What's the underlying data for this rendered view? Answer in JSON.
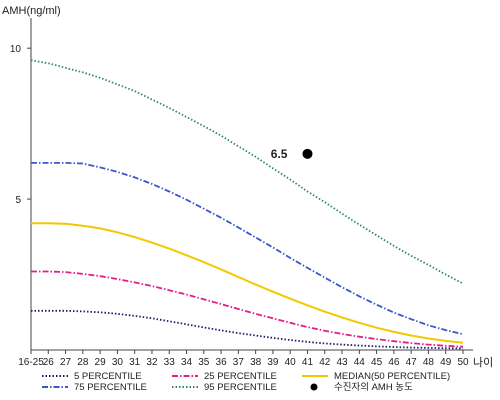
{
  "chart_data": {
    "type": "line",
    "ylabel": "AMH(ng/ml)",
    "xlabel": "나이",
    "x_tick_labels": [
      "16-25",
      "26",
      "27",
      "28",
      "29",
      "30",
      "31",
      "32",
      "33",
      "34",
      "35",
      "36",
      "37",
      "38",
      "39",
      "40",
      "41",
      "42",
      "43",
      "44",
      "45",
      "46",
      "47",
      "48",
      "49",
      "50"
    ],
    "y_ticks": [
      5,
      10
    ],
    "ylim": [
      0,
      11
    ],
    "grid": false,
    "legend_position": "bottom",
    "series": [
      {
        "name": "5 PERCENTILE",
        "color": "#1a1a6e",
        "dash": "dotted",
        "values": [
          1.3,
          1.3,
          1.3,
          1.28,
          1.25,
          1.2,
          1.13,
          1.05,
          0.95,
          0.85,
          0.75,
          0.65,
          0.56,
          0.48,
          0.4,
          0.33,
          0.27,
          0.22,
          0.18,
          0.15,
          0.12,
          0.1,
          0.08,
          0.07,
          0.06,
          0.05
        ]
      },
      {
        "name": "25 PERCENTILE",
        "color": "#e0208a",
        "dash": "dashdot",
        "values": [
          2.6,
          2.6,
          2.58,
          2.52,
          2.45,
          2.35,
          2.24,
          2.12,
          1.98,
          1.84,
          1.68,
          1.52,
          1.36,
          1.2,
          1.05,
          0.9,
          0.76,
          0.64,
          0.53,
          0.44,
          0.36,
          0.29,
          0.23,
          0.18,
          0.14,
          0.11
        ]
      },
      {
        "name": "MEDIAN(50 PERCENTILE)",
        "color": "#f2c800",
        "dash": "solid",
        "values": [
          4.2,
          4.2,
          4.18,
          4.12,
          4.03,
          3.9,
          3.74,
          3.56,
          3.36,
          3.14,
          2.91,
          2.67,
          2.42,
          2.17,
          1.93,
          1.7,
          1.48,
          1.27,
          1.08,
          0.9,
          0.74,
          0.6,
          0.48,
          0.38,
          0.3,
          0.24
        ]
      },
      {
        "name": "75 PERCENTILE",
        "color": "#3b58c8",
        "dash": "dashdot",
        "values": [
          6.2,
          6.2,
          6.2,
          6.18,
          6.05,
          5.9,
          5.72,
          5.5,
          5.25,
          4.98,
          4.68,
          4.38,
          4.06,
          3.73,
          3.4,
          3.05,
          2.72,
          2.4,
          2.08,
          1.78,
          1.5,
          1.24,
          1.02,
          0.82,
          0.66,
          0.52
        ]
      },
      {
        "name": "95 PERCENTILE",
        "color": "#2e8b57",
        "dash": "dotted",
        "values": [
          9.6,
          9.5,
          9.35,
          9.2,
          9.02,
          8.8,
          8.58,
          8.3,
          8.02,
          7.72,
          7.42,
          7.1,
          6.75,
          6.4,
          6.02,
          5.65,
          5.25,
          4.9,
          4.52,
          4.15,
          3.8,
          3.45,
          3.12,
          2.82,
          2.5,
          2.2
        ]
      }
    ],
    "annotation": {
      "label": "6.5",
      "x": "41",
      "y": 6.5,
      "legend": "수진자의 AMH 농도",
      "color": "#000000"
    }
  }
}
